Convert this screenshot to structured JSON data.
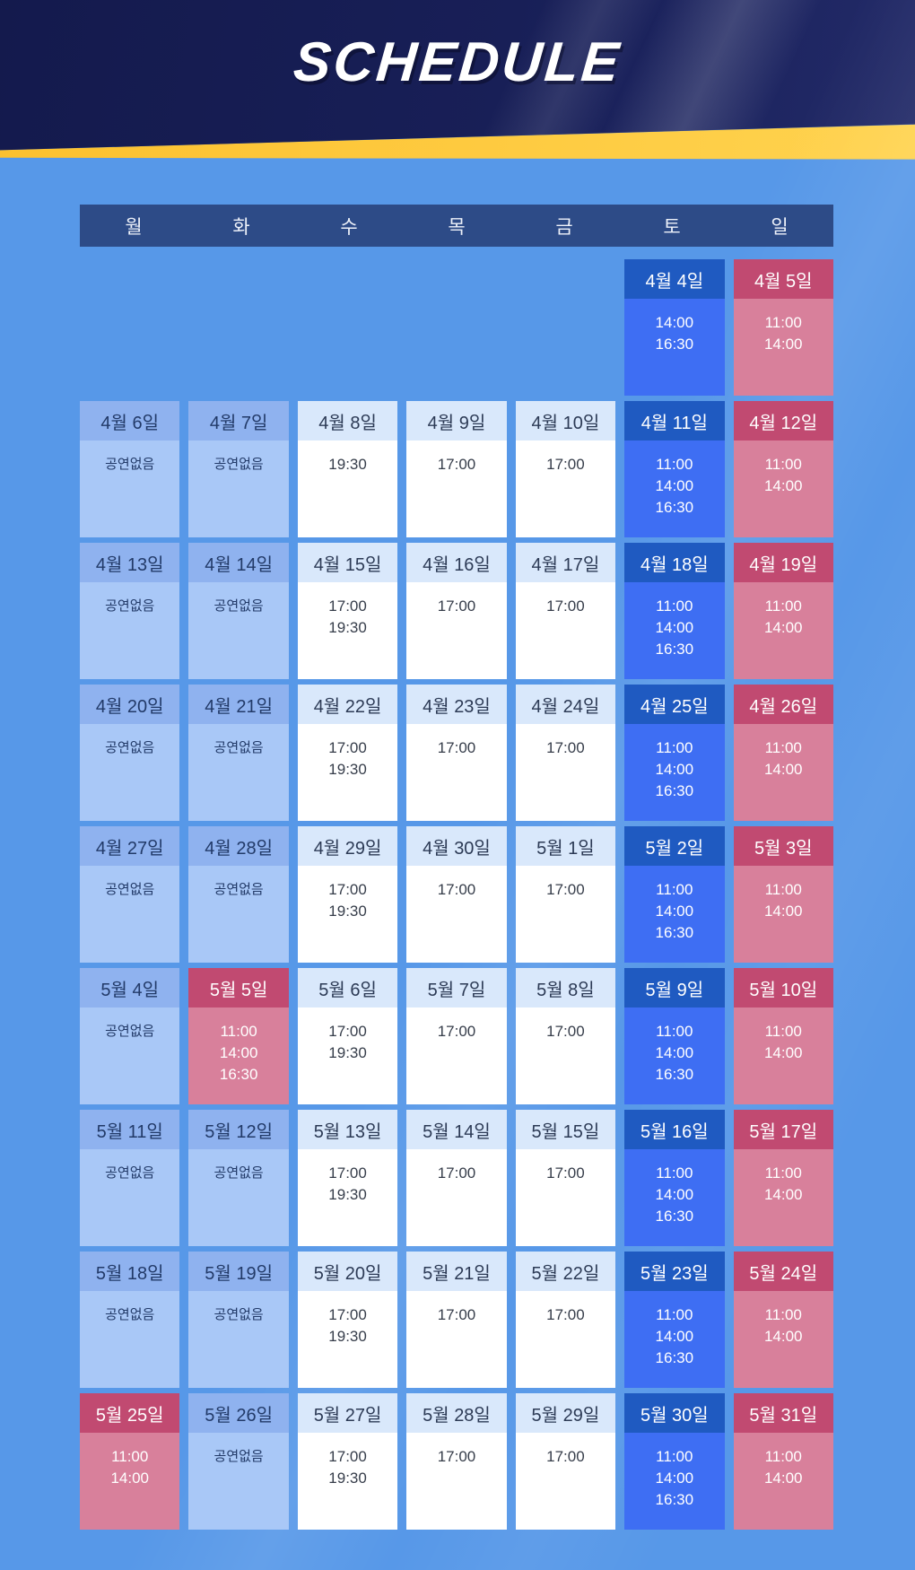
{
  "title": "SCHEDULE",
  "weekday_header": [
    "월",
    "화",
    "수",
    "목",
    "금",
    "토",
    "일"
  ],
  "no_show_label": "공연없음",
  "colors": {
    "background": "#5798e8",
    "hero_navy": "#141a4d",
    "ribbon_yellow": "#fcc02e",
    "weekday_bar": "#2d4b87",
    "noshow_head": "#8fb2ef",
    "noshow_body": "#a9c8f7",
    "show_head": "#d9e8fb",
    "show_body": "#ffffff",
    "saturday_head": "#1f5ac1",
    "saturday_body": "#3e6ef3",
    "sunday_head": "#c14a71",
    "sunday_body": "#d8809b",
    "ink_navy": "#223a68",
    "ink_dark": "#363d4a"
  },
  "weeks": [
    {
      "cells": [
        null,
        null,
        null,
        null,
        null,
        {
          "date": "4월 4일",
          "type": "saturday",
          "times": [
            "14:00",
            "16:30"
          ]
        },
        {
          "date": "4월 5일",
          "type": "sunday",
          "times": [
            "11:00",
            "14:00"
          ]
        }
      ]
    },
    {
      "cells": [
        {
          "date": "4월 6일",
          "type": "noshow",
          "label": "공연없음"
        },
        {
          "date": "4월 7일",
          "type": "noshow",
          "label": "공연없음"
        },
        {
          "date": "4월 8일",
          "type": "weekday",
          "times": [
            "19:30"
          ]
        },
        {
          "date": "4월 9일",
          "type": "weekday",
          "times": [
            "17:00"
          ]
        },
        {
          "date": "4월 10일",
          "type": "weekday",
          "times": [
            "17:00"
          ]
        },
        {
          "date": "4월 11일",
          "type": "saturday",
          "times": [
            "11:00",
            "14:00",
            "16:30"
          ]
        },
        {
          "date": "4월 12일",
          "type": "sunday",
          "times": [
            "11:00",
            "14:00"
          ]
        }
      ]
    },
    {
      "cells": [
        {
          "date": "4월 13일",
          "type": "noshow",
          "label": "공연없음"
        },
        {
          "date": "4월 14일",
          "type": "noshow",
          "label": "공연없음"
        },
        {
          "date": "4월 15일",
          "type": "weekday",
          "times": [
            "17:00",
            "19:30"
          ]
        },
        {
          "date": "4월 16일",
          "type": "weekday",
          "times": [
            "17:00"
          ]
        },
        {
          "date": "4월 17일",
          "type": "weekday",
          "times": [
            "17:00"
          ]
        },
        {
          "date": "4월 18일",
          "type": "saturday",
          "times": [
            "11:00",
            "14:00",
            "16:30"
          ]
        },
        {
          "date": "4월 19일",
          "type": "sunday",
          "times": [
            "11:00",
            "14:00"
          ]
        }
      ]
    },
    {
      "cells": [
        {
          "date": "4월 20일",
          "type": "noshow",
          "label": "공연없음"
        },
        {
          "date": "4월 21일",
          "type": "noshow",
          "label": "공연없음"
        },
        {
          "date": "4월 22일",
          "type": "weekday",
          "times": [
            "17:00",
            "19:30"
          ]
        },
        {
          "date": "4월 23일",
          "type": "weekday",
          "times": [
            "17:00"
          ]
        },
        {
          "date": "4월 24일",
          "type": "weekday",
          "times": [
            "17:00"
          ]
        },
        {
          "date": "4월 25일",
          "type": "saturday",
          "times": [
            "11:00",
            "14:00",
            "16:30"
          ]
        },
        {
          "date": "4월 26일",
          "type": "sunday",
          "times": [
            "11:00",
            "14:00"
          ]
        }
      ]
    },
    {
      "cells": [
        {
          "date": "4월 27일",
          "type": "noshow",
          "label": "공연없음"
        },
        {
          "date": "4월 28일",
          "type": "noshow",
          "label": "공연없음"
        },
        {
          "date": "4월 29일",
          "type": "weekday",
          "times": [
            "17:00",
            "19:30"
          ]
        },
        {
          "date": "4월 30일",
          "type": "weekday",
          "times": [
            "17:00"
          ]
        },
        {
          "date": "5월 1일",
          "type": "weekday",
          "times": [
            "17:00"
          ]
        },
        {
          "date": "5월 2일",
          "type": "saturday",
          "times": [
            "11:00",
            "14:00",
            "16:30"
          ]
        },
        {
          "date": "5월 3일",
          "type": "sunday",
          "times": [
            "11:00",
            "14:00"
          ]
        }
      ]
    },
    {
      "cells": [
        {
          "date": "5월 4일",
          "type": "noshow",
          "label": "공연없음"
        },
        {
          "date": "5월 5일",
          "type": "holiday",
          "times": [
            "11:00",
            "14:00",
            "16:30"
          ]
        },
        {
          "date": "5월 6일",
          "type": "weekday",
          "times": [
            "17:00",
            "19:30"
          ]
        },
        {
          "date": "5월 7일",
          "type": "weekday",
          "times": [
            "17:00"
          ]
        },
        {
          "date": "5월 8일",
          "type": "weekday",
          "times": [
            "17:00"
          ]
        },
        {
          "date": "5월 9일",
          "type": "saturday",
          "times": [
            "11:00",
            "14:00",
            "16:30"
          ]
        },
        {
          "date": "5월 10일",
          "type": "sunday",
          "times": [
            "11:00",
            "14:00"
          ]
        }
      ]
    },
    {
      "cells": [
        {
          "date": "5월 11일",
          "type": "noshow",
          "label": "공연없음"
        },
        {
          "date": "5월 12일",
          "type": "noshow",
          "label": "공연없음"
        },
        {
          "date": "5월 13일",
          "type": "weekday",
          "times": [
            "17:00",
            "19:30"
          ]
        },
        {
          "date": "5월 14일",
          "type": "weekday",
          "times": [
            "17:00"
          ]
        },
        {
          "date": "5월 15일",
          "type": "weekday",
          "times": [
            "17:00"
          ]
        },
        {
          "date": "5월 16일",
          "type": "saturday",
          "times": [
            "11:00",
            "14:00",
            "16:30"
          ]
        },
        {
          "date": "5월 17일",
          "type": "sunday",
          "times": [
            "11:00",
            "14:00"
          ]
        }
      ]
    },
    {
      "cells": [
        {
          "date": "5월 18일",
          "type": "noshow",
          "label": "공연없음"
        },
        {
          "date": "5월 19일",
          "type": "noshow",
          "label": "공연없음"
        },
        {
          "date": "5월 20일",
          "type": "weekday",
          "times": [
            "17:00",
            "19:30"
          ]
        },
        {
          "date": "5월 21일",
          "type": "weekday",
          "times": [
            "17:00"
          ]
        },
        {
          "date": "5월 22일",
          "type": "weekday",
          "times": [
            "17:00"
          ]
        },
        {
          "date": "5월 23일",
          "type": "saturday",
          "times": [
            "11:00",
            "14:00",
            "16:30"
          ]
        },
        {
          "date": "5월 24일",
          "type": "sunday",
          "times": [
            "11:00",
            "14:00"
          ]
        }
      ]
    },
    {
      "cells": [
        {
          "date": "5월 25일",
          "type": "holiday",
          "times": [
            "11:00",
            "14:00"
          ]
        },
        {
          "date": "5월 26일",
          "type": "noshow",
          "label": "공연없음"
        },
        {
          "date": "5월 27일",
          "type": "weekday",
          "times": [
            "17:00",
            "19:30"
          ]
        },
        {
          "date": "5월 28일",
          "type": "weekday",
          "times": [
            "17:00"
          ]
        },
        {
          "date": "5월 29일",
          "type": "weekday",
          "times": [
            "17:00"
          ]
        },
        {
          "date": "5월 30일",
          "type": "saturday",
          "times": [
            "11:00",
            "14:00",
            "16:30"
          ]
        },
        {
          "date": "5월 31일",
          "type": "sunday",
          "times": [
            "11:00",
            "14:00"
          ]
        }
      ]
    }
  ]
}
